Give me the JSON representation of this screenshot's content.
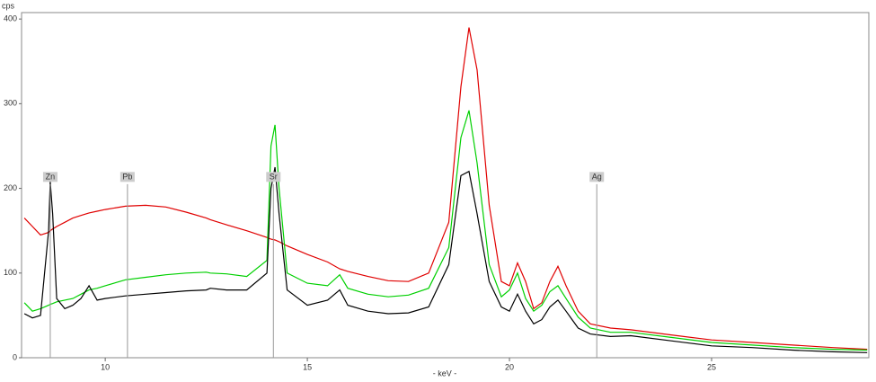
{
  "chart_data": {
    "type": "line",
    "y_label": "cps",
    "x_label": "- keV -",
    "x": [
      8.0,
      8.2,
      8.4,
      8.6,
      8.64,
      8.7,
      8.8,
      9.0,
      9.2,
      9.4,
      9.6,
      9.8,
      10.0,
      10.5,
      11,
      11.5,
      12,
      12.5,
      12.6,
      13,
      13.5,
      14,
      14.1,
      14.2,
      14.3,
      14.5,
      15,
      15.5,
      15.8,
      16,
      16.5,
      17,
      17.5,
      18,
      18.5,
      18.8,
      19.0,
      19.2,
      19.5,
      19.8,
      20.0,
      20.2,
      20.4,
      20.6,
      20.8,
      21,
      21.2,
      21.4,
      21.7,
      22,
      22.5,
      23,
      24,
      25,
      26,
      27,
      28,
      28.85
    ],
    "series": [
      {
        "color": "#e00000",
        "values": [
          165,
          155,
          145,
          148,
          150,
          152,
          155,
          160,
          165,
          168,
          171,
          173,
          175,
          179,
          180,
          178,
          172,
          165,
          163,
          157,
          150,
          142,
          140,
          139,
          137,
          132,
          122,
          113,
          105,
          102,
          96,
          91,
          90,
          100,
          160,
          320,
          390,
          340,
          180,
          90,
          85,
          112,
          90,
          58,
          65,
          90,
          108,
          85,
          55,
          40,
          35,
          33,
          27,
          21,
          18,
          15,
          12,
          10
        ]
      },
      {
        "color": "#00d000",
        "values": [
          65,
          55,
          58,
          62,
          63,
          64,
          66,
          68,
          70,
          75,
          80,
          82,
          85,
          92,
          95,
          98,
          100,
          101,
          100,
          99,
          96,
          115,
          250,
          275,
          200,
          100,
          88,
          85,
          98,
          82,
          75,
          72,
          74,
          82,
          130,
          260,
          292,
          230,
          110,
          72,
          80,
          100,
          70,
          55,
          62,
          78,
          85,
          70,
          48,
          35,
          30,
          30,
          24,
          18,
          15,
          12,
          10,
          9
        ]
      },
      {
        "color": "#000000",
        "values": [
          52,
          47,
          50,
          150,
          208,
          170,
          70,
          58,
          62,
          70,
          85,
          68,
          70,
          73,
          75,
          77,
          79,
          80,
          82,
          80,
          80,
          100,
          200,
          225,
          170,
          80,
          62,
          68,
          80,
          62,
          55,
          52,
          53,
          60,
          110,
          215,
          220,
          170,
          90,
          60,
          55,
          75,
          55,
          40,
          45,
          60,
          68,
          55,
          35,
          28,
          25,
          26,
          20,
          14,
          12,
          9,
          7,
          6
        ]
      }
    ],
    "annotations": [
      {
        "label": "Zn",
        "x": 8.64
      },
      {
        "label": "Pb",
        "x": 10.55
      },
      {
        "label": "Sr",
        "x": 14.16
      },
      {
        "label": "Ag",
        "x": 22.16
      }
    ],
    "xlim": [
      7.93,
      28.89
    ],
    "ylim": [
      0,
      407.6
    ],
    "xticks": [
      10,
      15,
      20,
      25
    ],
    "yticks": [
      0,
      100,
      200,
      300,
      400
    ]
  }
}
